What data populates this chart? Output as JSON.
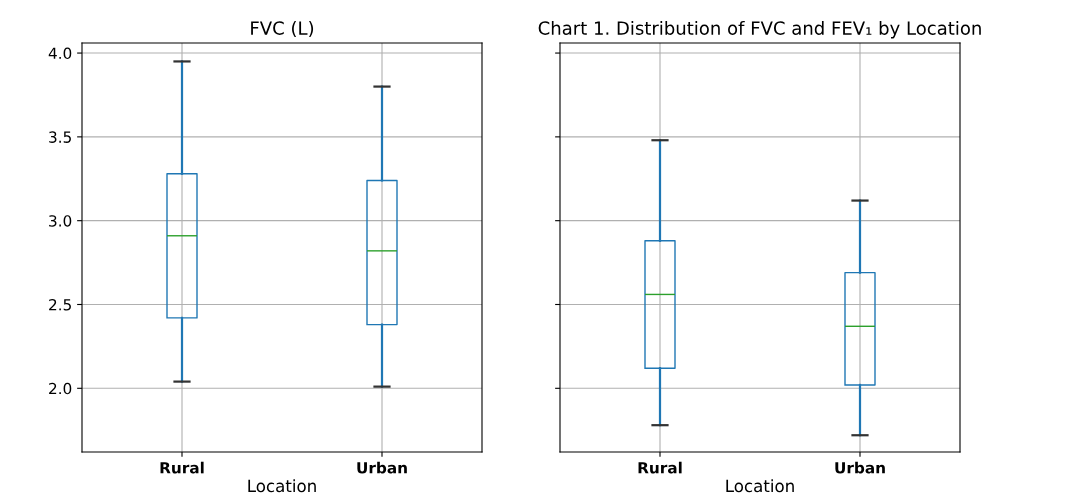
{
  "chart_data": [
    {
      "type": "box",
      "title": "FVC (L)",
      "xlabel": "Location",
      "categories": [
        "Rural",
        "Urban"
      ],
      "color": "#1f77b4",
      "ylim": [
        1.62,
        4.06
      ],
      "yticks": [
        {
          "value": 2.0,
          "label": "2.0"
        },
        {
          "value": 2.5,
          "label": "2.5"
        },
        {
          "value": 3.0,
          "label": "3.0"
        },
        {
          "value": 3.5,
          "label": "3.5"
        },
        {
          "value": 4.0,
          "label": "4.0"
        }
      ],
      "grid": true,
      "boxes": [
        {
          "low": 2.04,
          "q1": 2.42,
          "median": 2.91,
          "q3": 3.28,
          "high": 3.95
        },
        {
          "low": 2.01,
          "q1": 2.38,
          "median": 2.82,
          "q3": 3.24,
          "high": 3.8
        }
      ]
    },
    {
      "type": "box",
      "title": "Chart 1. Distribution of FVC and FEV₁ by Location",
      "xlabel": "Location",
      "categories": [
        "Rural",
        "Urban"
      ],
      "color": "#1f77b4",
      "ylim": [
        1.62,
        4.06
      ],
      "yticks": [
        2,
        2.5,
        3,
        3.5,
        4
      ],
      "grid": true,
      "tick_labels": "x",
      "boxes": [
        {
          "low": 1.78,
          "q1": 2.12,
          "median": 2.56,
          "q3": 2.88,
          "high": 3.48
        },
        {
          "low": 1.72,
          "q1": 2.02,
          "median": 2.37,
          "q3": 2.69,
          "high": 3.12
        }
      ]
    }
  ]
}
